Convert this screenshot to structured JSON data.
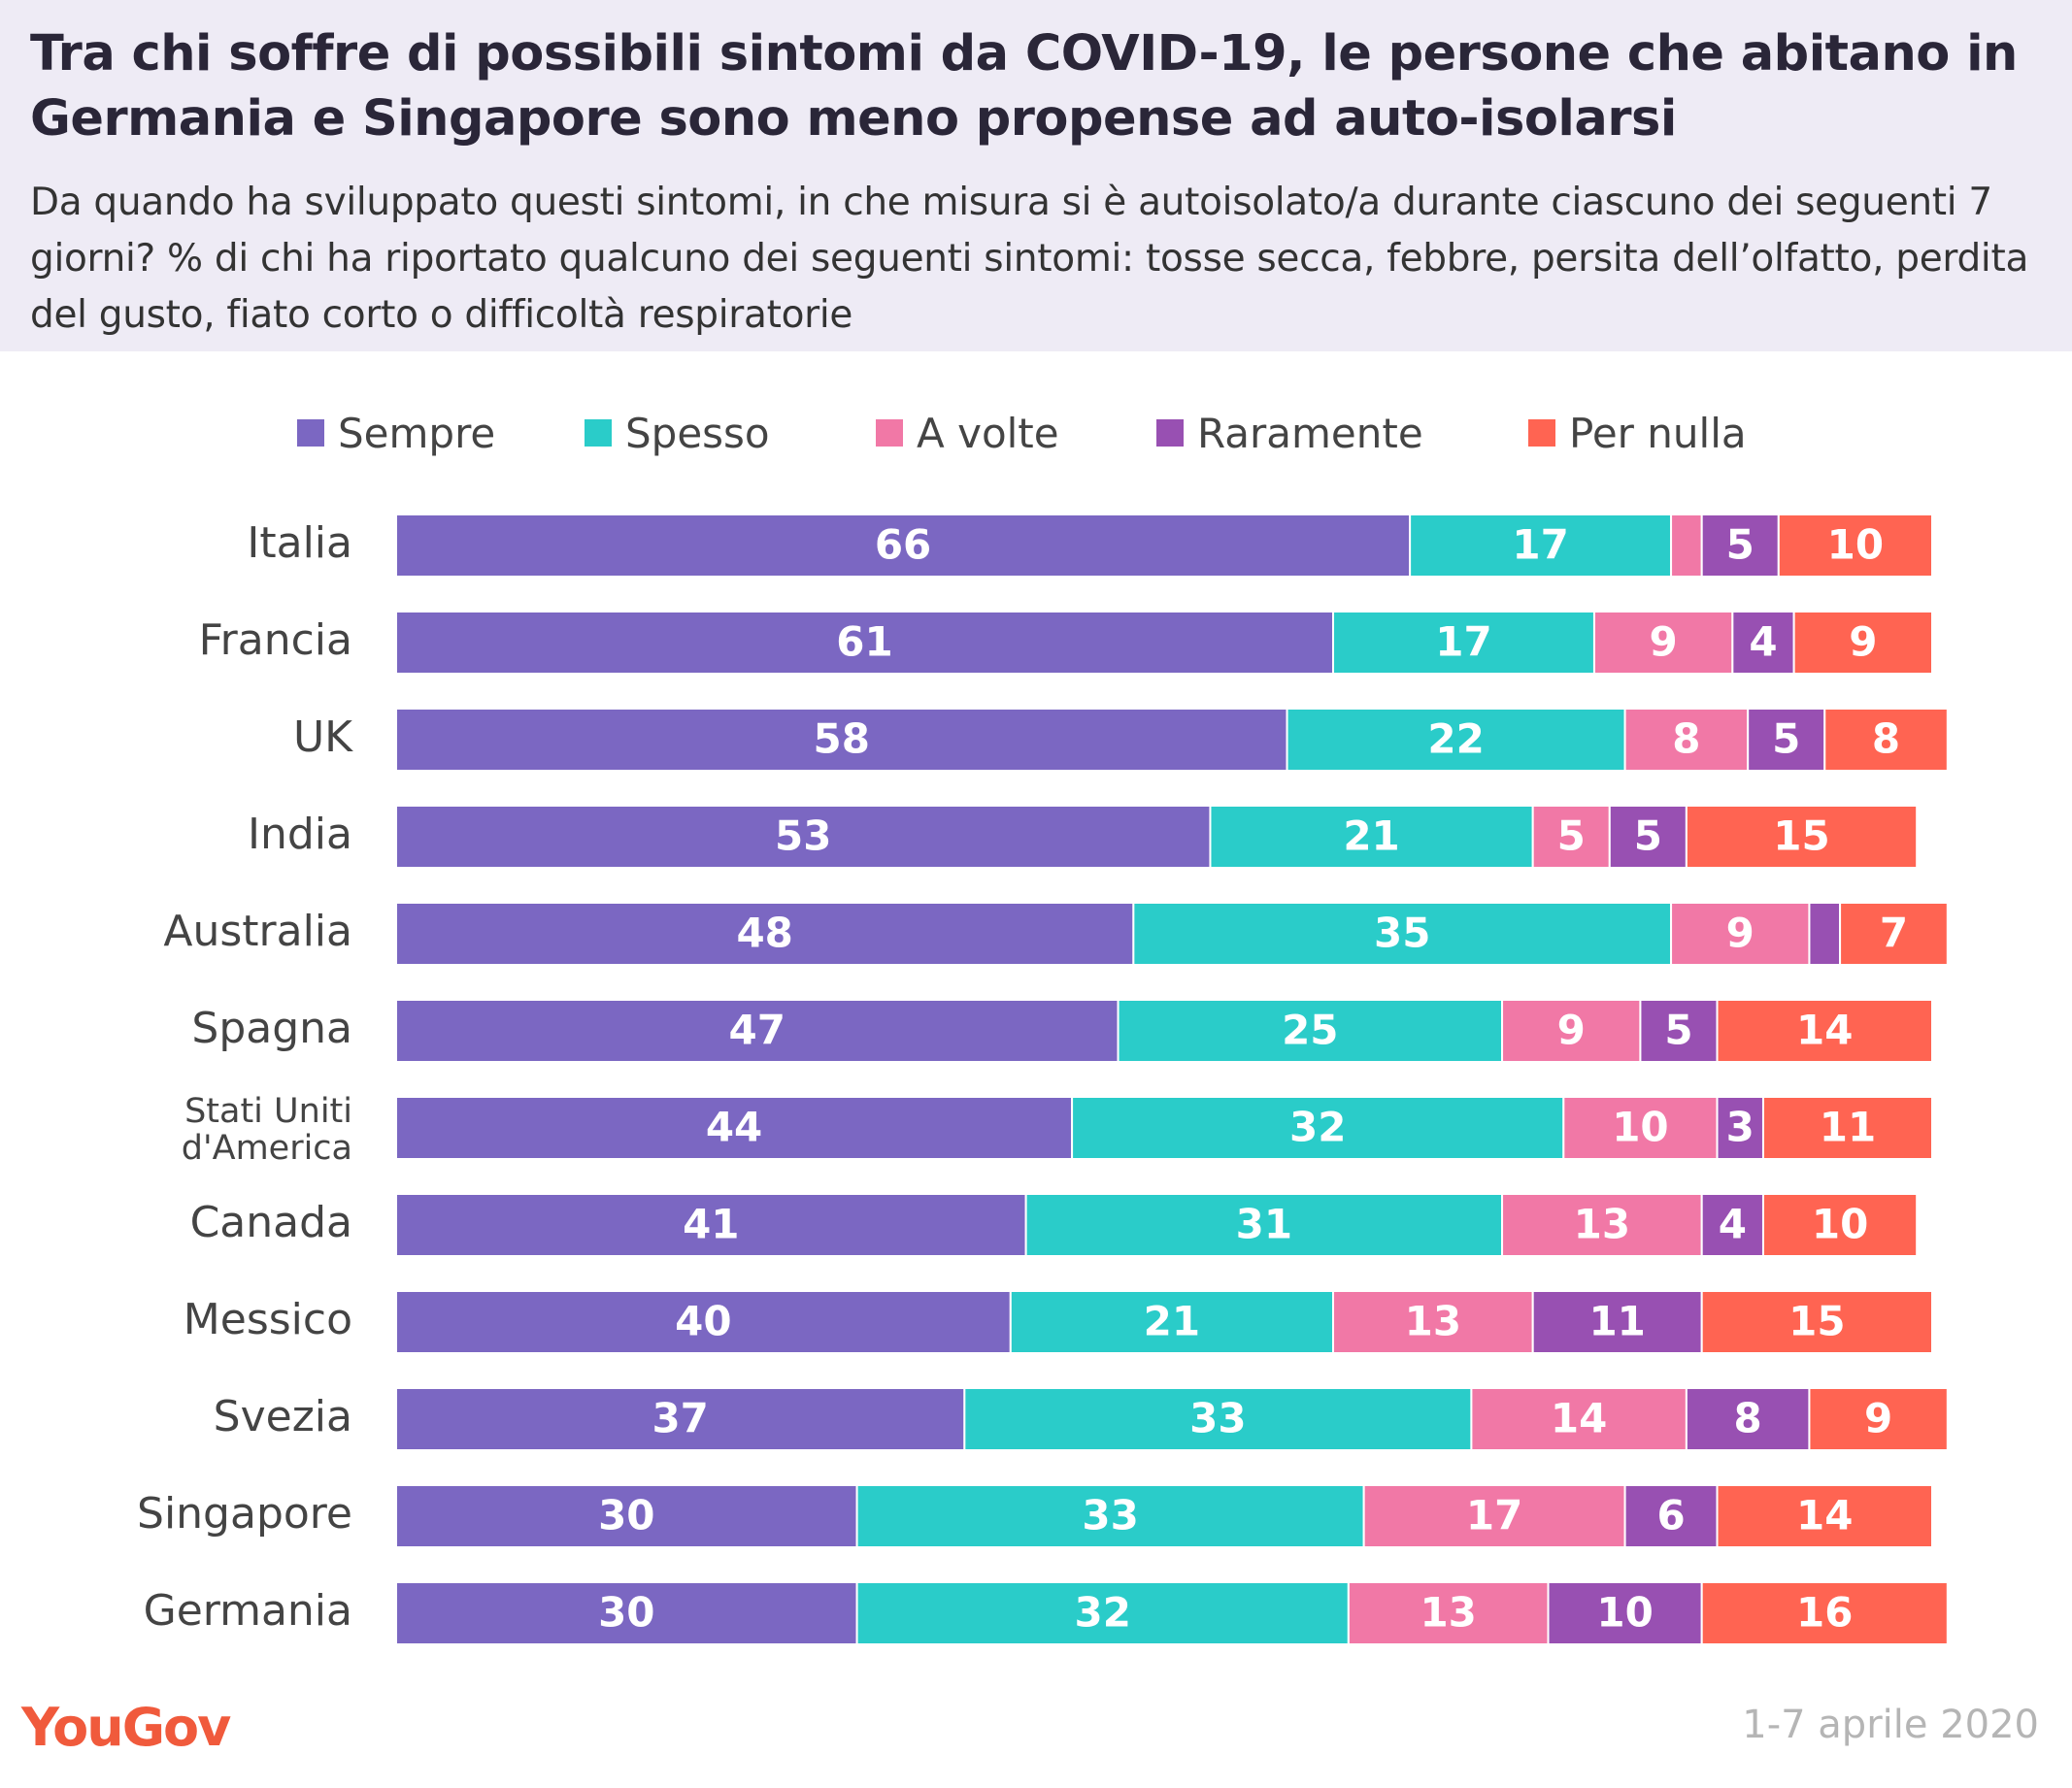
{
  "title": "Tra chi soffre di possibili sintomi da COVID-19, le persone che abitano in Germania e Singapore sono meno propense ad auto-isolarsi",
  "subtitle": "Da quando ha sviluppato questi sintomi, in che misura si è autoisolato/a durante ciascuno dei seguenti 7 giorni? % di chi ha riportato qualcuno dei seguenti sintomi: tosse secca, febbre, persita dell’olfatto, perdita del gusto, fiato corto o difficoltà respiratorie",
  "source_logo": "YouGov",
  "date": "1-7 aprile 2020",
  "colors": {
    "header_bg": "#eeebf5",
    "sempre": "#7b67c2",
    "spesso": "#2accc9",
    "a_volte": "#f178a6",
    "raramente": "#9850b2",
    "per_nulla": "#ff6452"
  },
  "chart_data": {
    "type": "bar",
    "orientation": "horizontal",
    "stacked": true,
    "categories": [
      "Italia",
      "Francia",
      "UK",
      "India",
      "Australia",
      "Spagna",
      "Stati Uniti d'America",
      "Canada",
      "Messico",
      "Svezia",
      "Singapore",
      "Germania"
    ],
    "series": [
      {
        "name": "Sempre",
        "color": "#7b67c2",
        "values": [
          66,
          61,
          58,
          53,
          48,
          47,
          44,
          41,
          40,
          37,
          30,
          30
        ],
        "labels": [
          "66",
          "61",
          "58",
          "53",
          "48",
          "47",
          "44",
          "41",
          "40",
          "37",
          "30",
          "30"
        ]
      },
      {
        "name": "Spesso",
        "color": "#2accc9",
        "values": [
          17,
          17,
          22,
          21,
          35,
          25,
          32,
          31,
          21,
          33,
          33,
          32
        ],
        "labels": [
          "17",
          "17",
          "22",
          "21",
          "35",
          "25",
          "32",
          "31",
          "21",
          "33",
          "33",
          "32"
        ]
      },
      {
        "name": "A volte",
        "color": "#f178a6",
        "values": [
          2,
          9,
          8,
          5,
          9,
          9,
          10,
          13,
          13,
          14,
          17,
          13
        ],
        "labels": [
          "",
          "9",
          "8",
          "5",
          "9",
          "9",
          "10",
          "13",
          "13",
          "14",
          "17",
          "13"
        ]
      },
      {
        "name": "Raramente",
        "color": "#9850b2",
        "values": [
          5,
          4,
          5,
          5,
          2,
          5,
          3,
          4,
          11,
          8,
          6,
          10
        ],
        "labels": [
          "5",
          "4",
          "5",
          "5",
          "",
          "5",
          "3",
          "4",
          "11",
          "8",
          "6",
          "10"
        ]
      },
      {
        "name": "Per nulla",
        "color": "#ff6452",
        "values": [
          10,
          9,
          8,
          15,
          7,
          14,
          11,
          10,
          15,
          9,
          14,
          16
        ],
        "labels": [
          "10",
          "9",
          "8",
          "15",
          "7",
          "14",
          "11",
          "10",
          "15",
          "9",
          "14",
          "16"
        ]
      }
    ],
    "xlim": [
      0,
      100
    ],
    "legend_position": "top",
    "grid": false
  }
}
